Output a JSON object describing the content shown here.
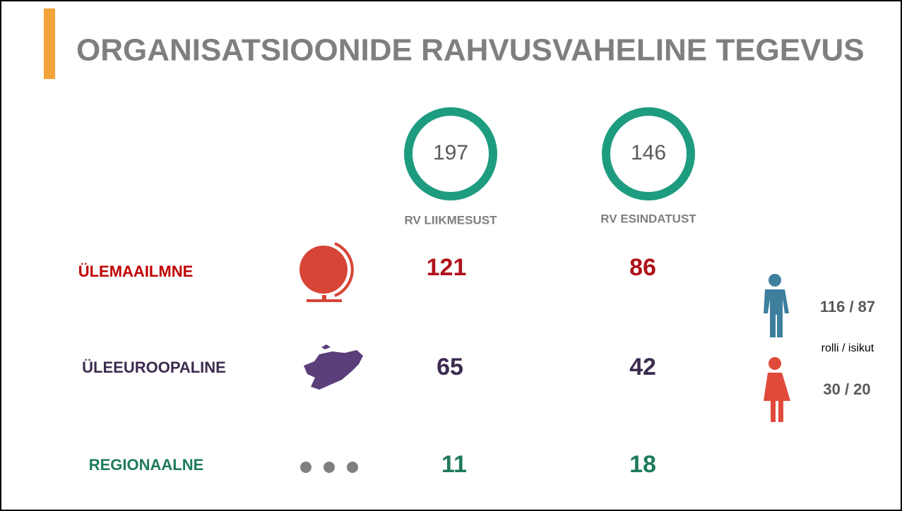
{
  "title": "ORGANISATSIOONIDE RAHVUSVAHELINE TEGEVUS",
  "totals": [
    {
      "value": 197,
      "label": "RV LIIKMESUST"
    },
    {
      "value": 146,
      "label": "RV ESINDATUST"
    }
  ],
  "rows": [
    {
      "name": "ÜLEMAAILMNE",
      "values": [
        121,
        86
      ]
    },
    {
      "name": "ÜLEEUROOPALINE",
      "values": [
        65,
        42
      ]
    },
    {
      "name": "REGIONAALNE",
      "values": [
        11,
        18
      ]
    }
  ],
  "gender": {
    "men": "116 / 87",
    "caption": "rolli / isikut",
    "women": "30 / 20"
  }
}
